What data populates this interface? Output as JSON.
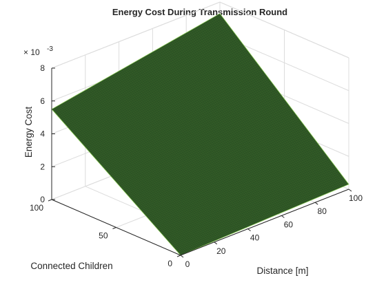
{
  "chart_data": {
    "type": "surface",
    "title": "Energy Cost During Transmission Round",
    "xlabel": "Distance [m]",
    "ylabel": "Connected Children",
    "zlabel": "Energy Cost",
    "z_exponent_label": "-3",
    "z_exponent_base": "× 10",
    "xlim": [
      0,
      100
    ],
    "ylim": [
      0,
      100
    ],
    "zlim": [
      0,
      0.008
    ],
    "x_ticks": [
      0,
      20,
      40,
      60,
      80,
      100
    ],
    "y_ticks": [
      0,
      50,
      100
    ],
    "z_ticks": [
      0,
      2,
      4,
      6,
      8
    ],
    "grid": true,
    "surface_color": "#2c5225",
    "edge_color": "#8fcf5a",
    "corner_values": [
      {
        "distance": 0,
        "children": 0,
        "energy_cost": 0.0
      },
      {
        "distance": 100,
        "children": 0,
        "energy_cost": 0.0003
      },
      {
        "distance": 0,
        "children": 100,
        "energy_cost": 0.0055
      },
      {
        "distance": 100,
        "children": 100,
        "energy_cost": 0.0073
      }
    ]
  }
}
